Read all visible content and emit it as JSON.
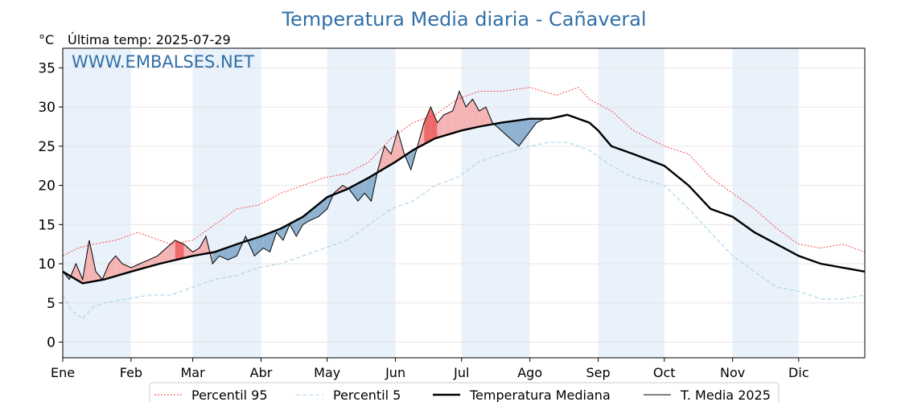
{
  "chart_data": {
    "type": "line",
    "title": "Temperatura Media diaria - Cañaveral",
    "unit_label": "°C",
    "subtitle": "Última temp: 2025-07-29",
    "watermark": "WWW.EMBALSES.NET",
    "xlabel": "",
    "ylabel": "",
    "x_tick_labels": [
      "Ene",
      "Feb",
      "Mar",
      "Abr",
      "May",
      "Jun",
      "Jul",
      "Ago",
      "Sep",
      "Oct",
      "Nov",
      "Dic"
    ],
    "month_start_days": [
      1,
      32,
      60,
      91,
      121,
      152,
      182,
      213,
      244,
      274,
      305,
      335
    ],
    "xlim": [
      1,
      365
    ],
    "ylim": [
      -2,
      37.5
    ],
    "yticks": [
      0,
      5,
      10,
      15,
      20,
      25,
      30,
      35
    ],
    "grid": true,
    "legend_position": "bottom-center",
    "colors": {
      "p95": "#ff3030",
      "p5": "#a8d4e6",
      "median": "#000000",
      "current": "#000000",
      "above_fill": "#f4b4b4",
      "above_strong_fill": "#ee6a6a",
      "below_fill": "#8fb2d1",
      "below_strong_fill": "#3e6a98",
      "band_fill": "#e9f1fa",
      "title": "#2f6fa8"
    },
    "series": [
      {
        "name": "Percentil 95",
        "style": "dotted",
        "points": [
          [
            1,
            11
          ],
          [
            8,
            12
          ],
          [
            15,
            12.5
          ],
          [
            25,
            13
          ],
          [
            35,
            14
          ],
          [
            50,
            12.5
          ],
          [
            60,
            13
          ],
          [
            70,
            15
          ],
          [
            80,
            17
          ],
          [
            90,
            17.5
          ],
          [
            100,
            19
          ],
          [
            110,
            20
          ],
          [
            120,
            21
          ],
          [
            130,
            21.5
          ],
          [
            140,
            23
          ],
          [
            150,
            26
          ],
          [
            160,
            28
          ],
          [
            170,
            29
          ],
          [
            180,
            31
          ],
          [
            190,
            32
          ],
          [
            200,
            32
          ],
          [
            213,
            32.5
          ],
          [
            225,
            31.5
          ],
          [
            235,
            32.5
          ],
          [
            240,
            31
          ],
          [
            250,
            29.5
          ],
          [
            260,
            27
          ],
          [
            274,
            25
          ],
          [
            285,
            24
          ],
          [
            295,
            21
          ],
          [
            305,
            19
          ],
          [
            315,
            17
          ],
          [
            325,
            14.5
          ],
          [
            335,
            12.5
          ],
          [
            345,
            12
          ],
          [
            355,
            12.5
          ],
          [
            365,
            11.5
          ]
        ]
      },
      {
        "name": "Percentil 5",
        "style": "dashed",
        "points": [
          [
            1,
            6
          ],
          [
            5,
            4
          ],
          [
            10,
            3
          ],
          [
            15,
            4.5
          ],
          [
            20,
            5
          ],
          [
            30,
            5.5
          ],
          [
            40,
            6
          ],
          [
            50,
            6
          ],
          [
            60,
            7
          ],
          [
            70,
            8
          ],
          [
            80,
            8.5
          ],
          [
            90,
            9.5
          ],
          [
            100,
            10
          ],
          [
            110,
            11
          ],
          [
            120,
            12
          ],
          [
            130,
            13
          ],
          [
            140,
            15
          ],
          [
            150,
            17
          ],
          [
            160,
            18
          ],
          [
            170,
            20
          ],
          [
            180,
            21
          ],
          [
            190,
            23
          ],
          [
            200,
            24
          ],
          [
            213,
            25
          ],
          [
            222,
            25.5
          ],
          [
            230,
            25.5
          ],
          [
            240,
            24.5
          ],
          [
            250,
            22.5
          ],
          [
            260,
            21
          ],
          [
            274,
            20
          ],
          [
            285,
            17
          ],
          [
            295,
            14
          ],
          [
            305,
            11
          ],
          [
            315,
            9
          ],
          [
            325,
            7
          ],
          [
            335,
            6.5
          ],
          [
            345,
            5.5
          ],
          [
            355,
            5.5
          ],
          [
            365,
            6
          ]
        ]
      },
      {
        "name": "Temperatura Mediana",
        "style": "solid-thick",
        "points": [
          [
            1,
            9
          ],
          [
            10,
            7.5
          ],
          [
            20,
            8
          ],
          [
            32,
            9
          ],
          [
            45,
            10
          ],
          [
            60,
            11
          ],
          [
            70,
            11.5
          ],
          [
            80,
            12.5
          ],
          [
            91,
            13.5
          ],
          [
            100,
            14.5
          ],
          [
            110,
            16
          ],
          [
            121,
            18.5
          ],
          [
            130,
            19.5
          ],
          [
            140,
            21
          ],
          [
            152,
            23
          ],
          [
            160,
            24.5
          ],
          [
            170,
            26
          ],
          [
            182,
            27
          ],
          [
            190,
            27.5
          ],
          [
            200,
            28
          ],
          [
            213,
            28.5
          ],
          [
            222,
            28.5
          ],
          [
            230,
            29
          ],
          [
            240,
            28
          ],
          [
            244,
            27
          ],
          [
            250,
            25
          ],
          [
            260,
            24
          ],
          [
            274,
            22.5
          ],
          [
            285,
            20
          ],
          [
            295,
            17
          ],
          [
            305,
            16
          ],
          [
            315,
            14
          ],
          [
            325,
            12.5
          ],
          [
            335,
            11
          ],
          [
            345,
            10
          ],
          [
            355,
            9.5
          ],
          [
            365,
            9
          ]
        ]
      },
      {
        "name": "T. Media 2025",
        "style": "solid-thin",
        "points": [
          [
            1,
            9
          ],
          [
            4,
            8
          ],
          [
            7,
            10
          ],
          [
            10,
            8
          ],
          [
            13,
            13
          ],
          [
            16,
            9
          ],
          [
            19,
            8
          ],
          [
            22,
            10
          ],
          [
            25,
            11
          ],
          [
            28,
            10
          ],
          [
            32,
            9.5
          ],
          [
            36,
            10
          ],
          [
            40,
            10.5
          ],
          [
            44,
            11
          ],
          [
            48,
            12
          ],
          [
            52,
            13
          ],
          [
            56,
            12.5
          ],
          [
            60,
            11.5
          ],
          [
            63,
            12
          ],
          [
            66,
            13.5
          ],
          [
            69,
            10
          ],
          [
            72,
            11
          ],
          [
            76,
            10.5
          ],
          [
            80,
            11
          ],
          [
            84,
            13.5
          ],
          [
            88,
            11
          ],
          [
            92,
            12
          ],
          [
            95,
            11.5
          ],
          [
            98,
            14
          ],
          [
            101,
            13
          ],
          [
            104,
            15
          ],
          [
            107,
            13.5
          ],
          [
            110,
            15
          ],
          [
            113,
            15.5
          ],
          [
            117,
            16
          ],
          [
            121,
            17
          ],
          [
            124,
            19
          ],
          [
            128,
            20
          ],
          [
            131,
            19.5
          ],
          [
            135,
            18
          ],
          [
            138,
            19
          ],
          [
            141,
            18
          ],
          [
            144,
            22
          ],
          [
            147,
            25
          ],
          [
            150,
            24
          ],
          [
            153,
            27
          ],
          [
            156,
            24
          ],
          [
            159,
            22
          ],
          [
            162,
            25
          ],
          [
            165,
            28
          ],
          [
            168,
            30
          ],
          [
            171,
            28
          ],
          [
            174,
            29
          ],
          [
            178,
            29.5
          ],
          [
            181,
            32
          ],
          [
            184,
            30
          ],
          [
            187,
            31
          ],
          [
            190,
            29.5
          ],
          [
            193,
            30
          ],
          [
            196,
            28
          ],
          [
            200,
            27
          ],
          [
            204,
            26
          ],
          [
            208,
            25
          ],
          [
            212,
            26.5
          ],
          [
            216,
            28
          ],
          [
            220,
            28.5
          ]
        ]
      }
    ],
    "legend_entries": [
      "Percentil 95",
      "Percentil 5",
      "Temperatura Mediana",
      "T. Media 2025"
    ]
  }
}
